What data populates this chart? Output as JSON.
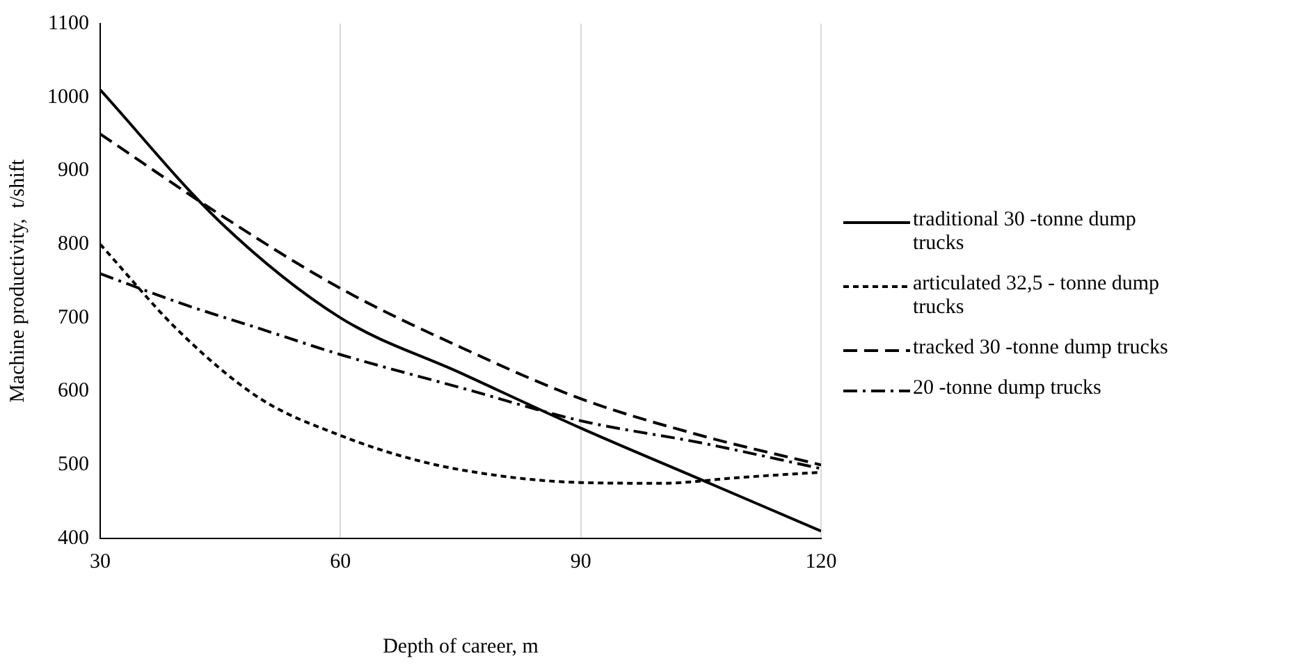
{
  "chart_data": {
    "type": "line",
    "xlabel": "Depth of career, m",
    "ylabel": "Machine productivity,  t/shift",
    "xlim": [
      30,
      120
    ],
    "xticks": [
      30,
      60,
      90,
      120
    ],
    "ylim": [
      400,
      1100
    ],
    "yticks": [
      400,
      500,
      600,
      700,
      800,
      900,
      1000,
      1100
    ],
    "grid": "x",
    "legend": "right",
    "marker": "none",
    "series": [
      {
        "name": "traditional 30 -tonne dump trucks",
        "color": "#000000",
        "line_style": "solid",
        "x": [
          30,
          45,
          60,
          75,
          90,
          105,
          120
        ],
        "values": [
          1010,
          830,
          700,
          625,
          550,
          480,
          410
        ]
      },
      {
        "name": "articulated 32,5 - tonne dump trucks",
        "color": "#000000",
        "line_style": "dotted",
        "x": [
          30,
          40,
          50,
          60,
          70,
          80,
          90,
          100,
          110,
          120
        ],
        "values": [
          800,
          680,
          590,
          540,
          505,
          485,
          476,
          475,
          483,
          490
        ]
      },
      {
        "name": "tracked 30 -tonne dump trucks",
        "color": "#000000",
        "line_style": "dashed",
        "x": [
          30,
          45,
          60,
          75,
          90,
          105,
          120
        ],
        "values": [
          950,
          840,
          740,
          660,
          590,
          540,
          500
        ]
      },
      {
        "name": "20 -tonne dump trucks",
        "color": "#000000",
        "line_style": "dashdot",
        "x": [
          30,
          40,
          50,
          60,
          75,
          90,
          105,
          120
        ],
        "values": [
          760,
          720,
          685,
          650,
          605,
          560,
          530,
          495
        ]
      }
    ]
  }
}
